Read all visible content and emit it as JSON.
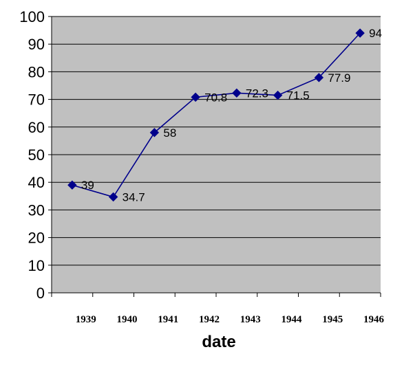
{
  "chart_data": {
    "type": "line",
    "categories": [
      "1939",
      "1940",
      "1941",
      "1942",
      "1943",
      "1944",
      "1945",
      "1946"
    ],
    "series": [
      {
        "values": [
          39,
          34.7,
          58,
          70.8,
          72.3,
          71.5,
          77.9,
          94
        ],
        "color": "#00008B"
      }
    ],
    "title": "",
    "xlabel": "date",
    "ylabel": "",
    "ylim": [
      0,
      100
    ],
    "yticks": [
      0,
      10,
      20,
      30,
      40,
      50,
      60,
      70,
      80,
      90,
      100
    ],
    "grid": true,
    "plot_background": "#C0C0C0",
    "marker": "diamond"
  }
}
